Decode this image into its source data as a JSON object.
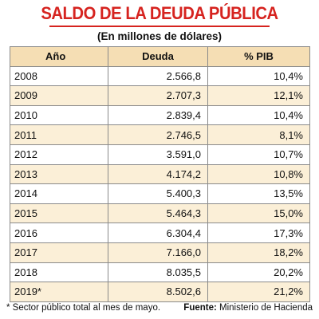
{
  "chart_data": {
    "type": "table",
    "title": "SALDO DE LA DEUDA PÚBLICA",
    "subtitle": "(En millones de dólares)",
    "columns": [
      "Año",
      "Deuda",
      "% PIB"
    ],
    "rows": [
      {
        "year": "2008",
        "debt": "2.566,8",
        "pib": "10,4%"
      },
      {
        "year": "2009",
        "debt": "2.707,3",
        "pib": "12,1%"
      },
      {
        "year": "2010",
        "debt": "2.839,4",
        "pib": "10,4%"
      },
      {
        "year": "2011",
        "debt": "2.746,5",
        "pib": "8,1%"
      },
      {
        "year": "2012",
        "debt": "3.591,0",
        "pib": "10,7%"
      },
      {
        "year": "2013",
        "debt": "4.174,2",
        "pib": "10,8%"
      },
      {
        "year": "2014",
        "debt": "5.400,3",
        "pib": "13,5%"
      },
      {
        "year": "2015",
        "debt": "5.464,3",
        "pib": "15,0%"
      },
      {
        "year": "2016",
        "debt": "6.304,4",
        "pib": "17,3%"
      },
      {
        "year": "2017",
        "debt": "7.166,0",
        "pib": "18,2%"
      },
      {
        "year": "2018",
        "debt": "8.035,5",
        "pib": "20,2%"
      },
      {
        "year": "2019*",
        "debt": "8.502,6",
        "pib": "21,2%"
      }
    ]
  },
  "footer": {
    "footnote": "* Sector público total al mes de mayo.",
    "source_label": "Fuente:",
    "source_text": " Ministerio de Hacienda"
  },
  "colors": {
    "title": "#d6231f",
    "header_bg": "#f5deb4",
    "alt_row_bg": "#fbefd7",
    "border": "#8a8a8a"
  }
}
